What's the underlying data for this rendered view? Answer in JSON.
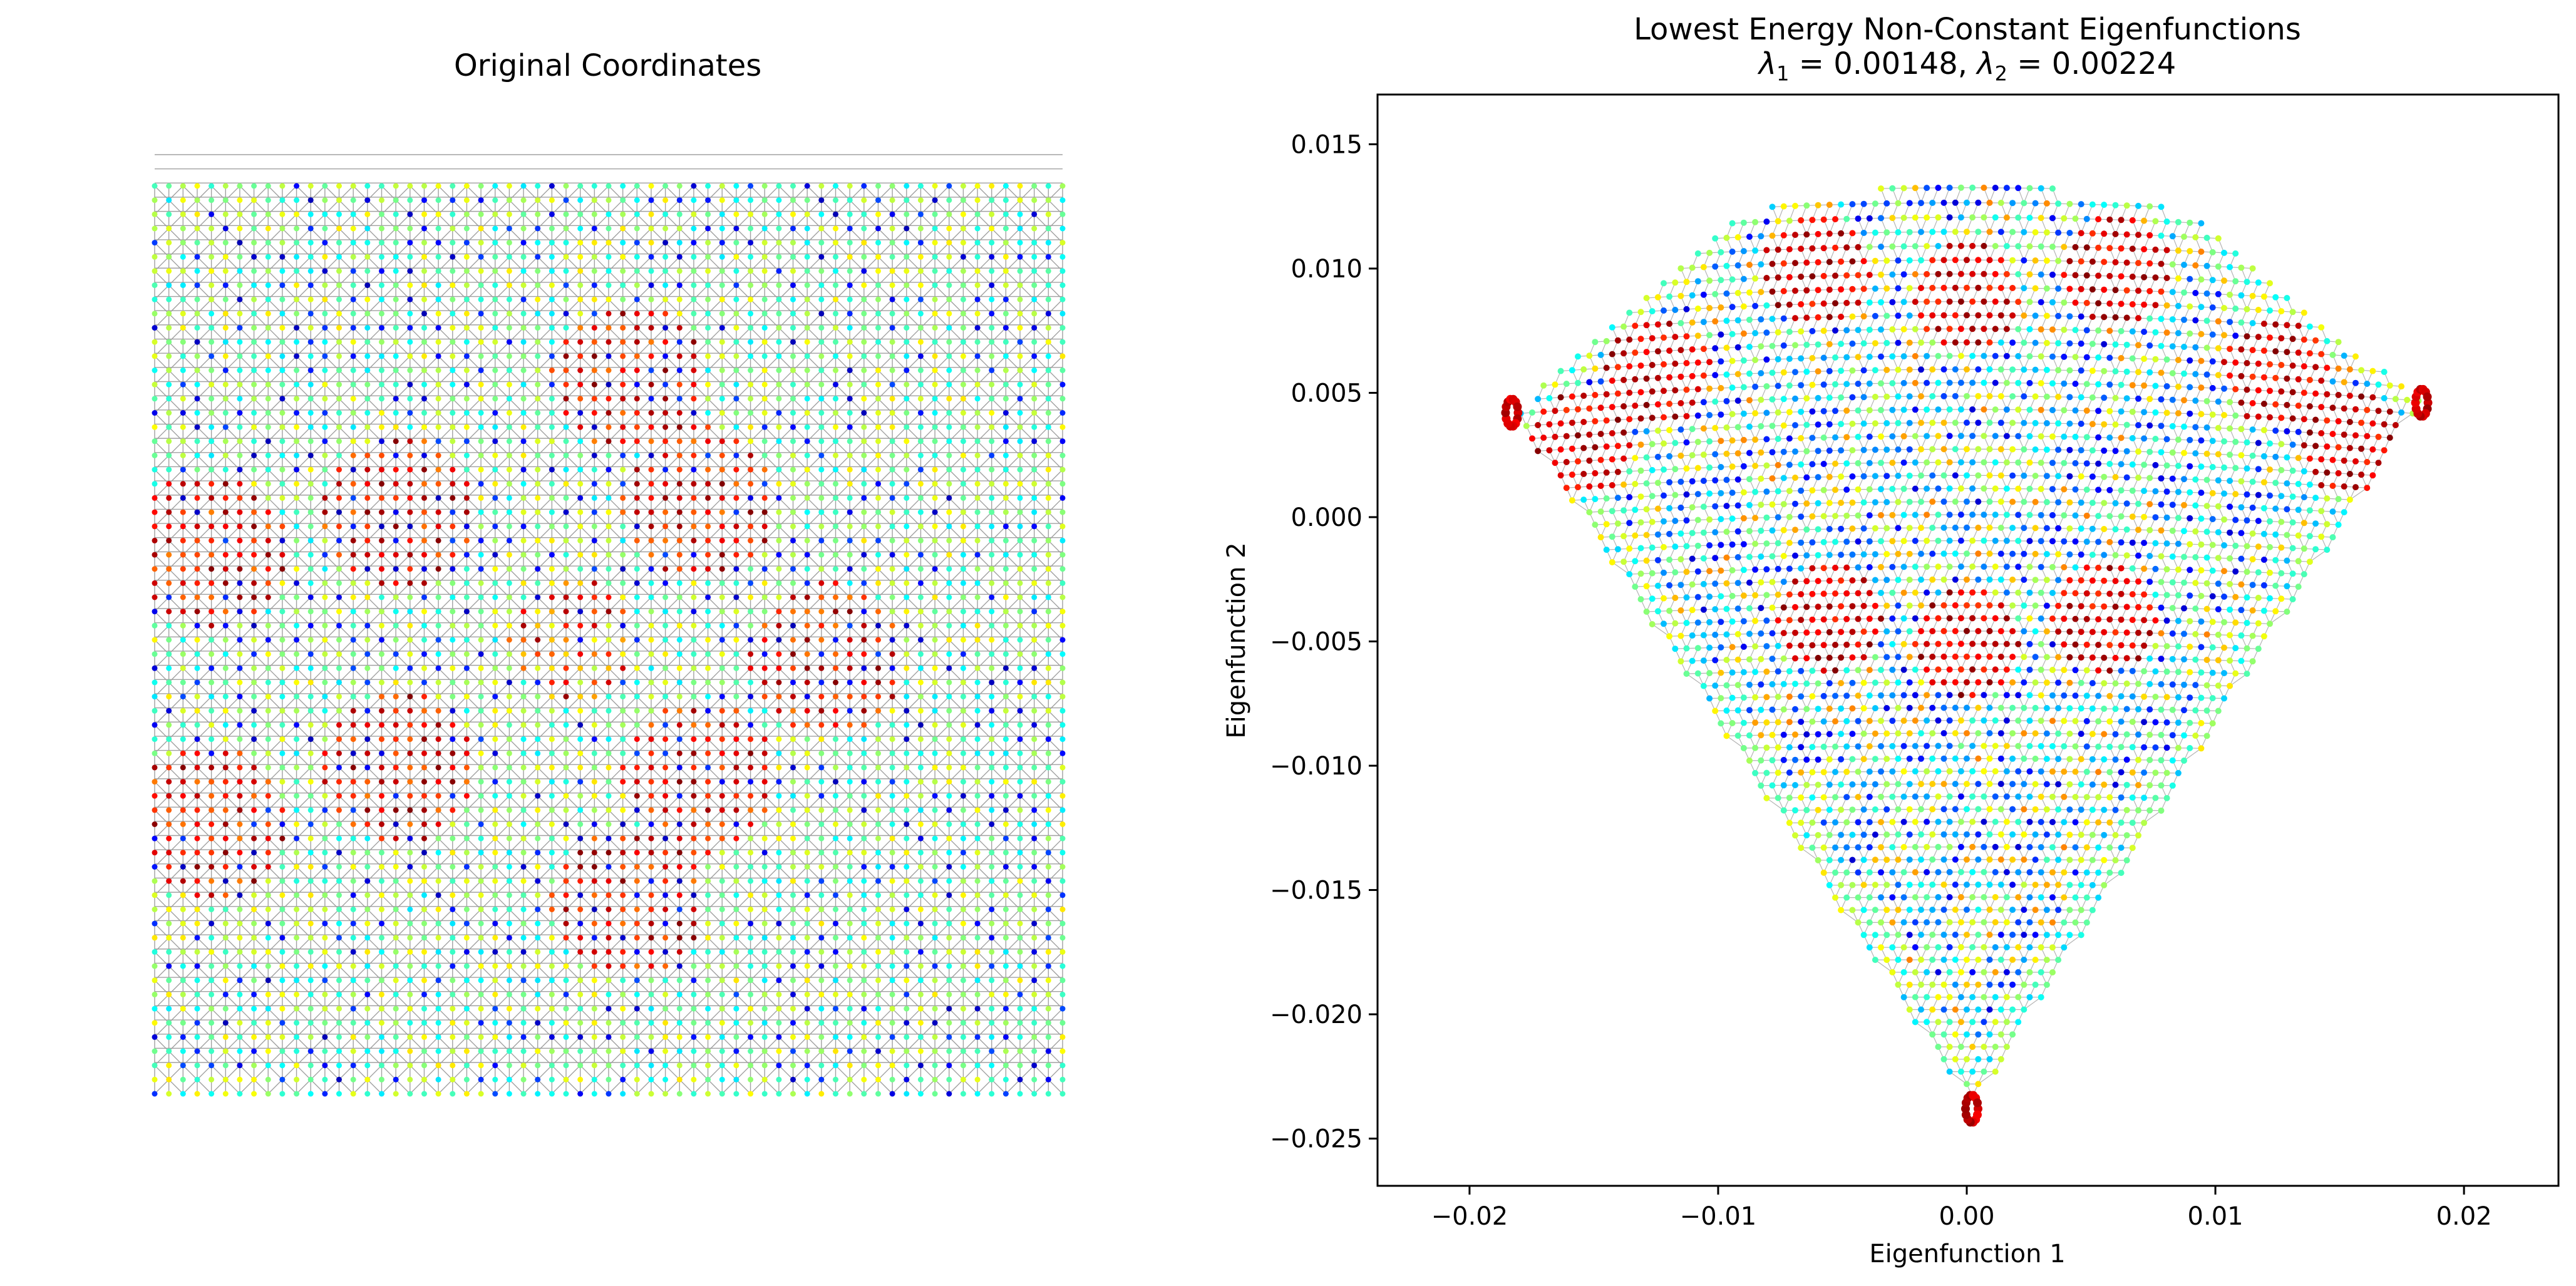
{
  "figure": {
    "colors": {
      "edge": "#808080",
      "axes": "#000000",
      "background": "#ffffff"
    },
    "colormap": "jet"
  },
  "chart_data": [
    {
      "type": "scatter",
      "title": "Original Coordinates",
      "xlabel": "",
      "ylabel": "",
      "axis_visible": false,
      "grid": false,
      "mesh": {
        "kind": "quadtree-grid",
        "nodes_per_side": 65,
        "refined_center": [
          0.5,
          0.5
        ],
        "node_color_scale": "jet"
      }
    },
    {
      "type": "scatter",
      "title": "Lowest Energy Non-Constant Eigenfunctions",
      "subtitle_parts": {
        "lambda_symbol": "λ",
        "sub1": "1",
        "val1": " = 0.00148, ",
        "sub2": "2",
        "val2": " = 0.00224"
      },
      "eigenvalues": {
        "lambda1": 0.00148,
        "lambda2": 0.00224
      },
      "xlabel": "Eigenfunction 1",
      "ylabel": "Eigenfunction 2",
      "xlim": [
        -0.0237,
        0.0238
      ],
      "ylim": [
        -0.0269,
        0.017
      ],
      "xticks": [
        -0.02,
        -0.01,
        0.0,
        0.01,
        0.02
      ],
      "xtick_labels": [
        "−0.02",
        "−0.01",
        "0.00",
        "0.01",
        "0.02"
      ],
      "yticks": [
        0.015,
        0.01,
        0.005,
        0.0,
        -0.005,
        -0.01,
        -0.015,
        -0.02,
        -0.025
      ],
      "ytick_labels": [
        "0.015",
        "0.010",
        "0.005",
        "0.000",
        "−0.005",
        "−0.010",
        "−0.015",
        "−0.020",
        "−0.025"
      ],
      "grid": false,
      "outline_vertices": [
        [
          0.0,
          0.0139
        ],
        [
          0.009,
          0.0123
        ],
        [
          0.0183,
          0.0046
        ],
        [
          0.0002,
          -0.0238
        ],
        [
          -0.0183,
          0.0042
        ],
        [
          -0.0089,
          0.0123
        ]
      ],
      "red_clusters": [
        [
          0.0,
          0.009
        ],
        [
          -0.0125,
          0.0058
        ],
        [
          0.0125,
          0.0058
        ],
        [
          -0.0155,
          0.003
        ],
        [
          0.0155,
          0.003
        ],
        [
          -0.0055,
          -0.004
        ],
        [
          0.0055,
          -0.004
        ],
        [
          0.0,
          -0.005
        ],
        [
          -0.006,
          0.01
        ],
        [
          0.006,
          0.01
        ]
      ]
    }
  ]
}
